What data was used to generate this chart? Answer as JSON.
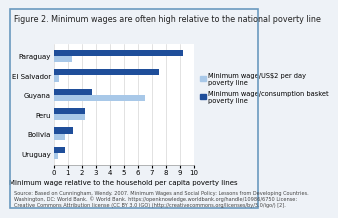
{
  "title": "Figure 2. Minimum wages are often high relative to the national poverty line",
  "xlabel": "Minimum wage relative to the household per capita poverty lines",
  "countries": [
    "Paraguay",
    "El Salvador",
    "Guyana",
    "Peru",
    "Bolivia",
    "Uruguay"
  ],
  "us2_values": [
    1.3,
    0.4,
    6.5,
    2.2,
    0.8,
    0.3
  ],
  "basket_values": [
    9.2,
    7.5,
    2.7,
    2.2,
    1.4,
    0.8
  ],
  "color_us2": "#a8c8e8",
  "color_basket": "#1f4e9a",
  "xlim": [
    0,
    10
  ],
  "xticks": [
    0,
    1,
    2,
    3,
    4,
    5,
    6,
    7,
    8,
    9,
    10
  ],
  "legend_us2": "Minimum wage/US$2 per day\npoverty line",
  "legend_basket": "Minimum wage/consumption basket\npoverty line",
  "source_text": "Source: Based on Cunningham, Wendy. 2007. Minimum Wages and Social Policy: Lessons from Developing Countries.\nWashington, DC: World Bank. © World Bank. https://openknowledge.worldbank.org/handle/10986/6750 License:\nCreative Commons Attribution license (CC BY 3.0 IGO) (http://creativecommons.org/licenses/by/3.0/igo/) [2].",
  "bg_color": "#eef2f7",
  "plot_bg": "#ffffff",
  "border_color": "#6a9abf",
  "title_fontsize": 5.8,
  "label_fontsize": 5.0,
  "tick_fontsize": 5.0,
  "legend_fontsize": 4.8,
  "source_fontsize": 3.6
}
